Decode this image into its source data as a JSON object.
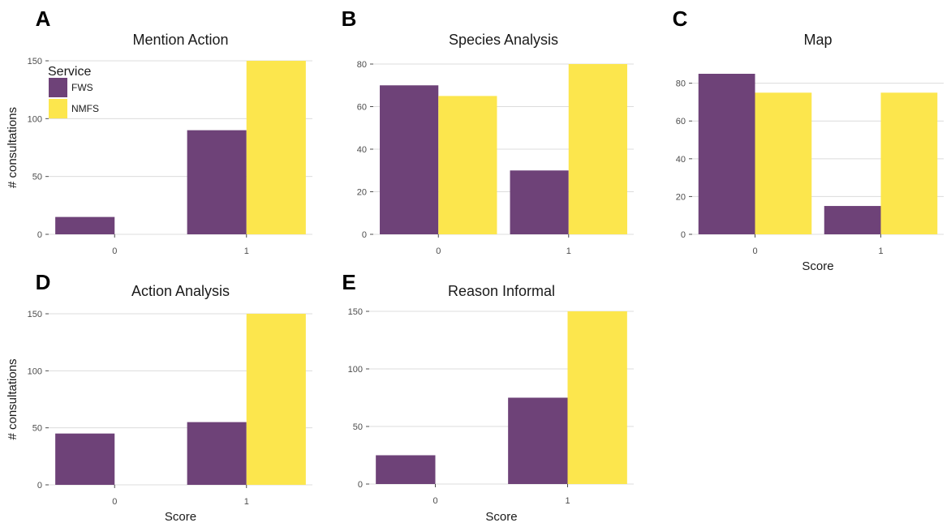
{
  "legend": {
    "title": "Service",
    "entries": [
      {
        "name": "FWS",
        "color": "#6E4278"
      },
      {
        "name": "NMFS",
        "color": "#FCE64D"
      }
    ]
  },
  "chart_data": [
    {
      "id": "A",
      "type": "bar",
      "title": "Mention Action",
      "categories": [
        "0",
        "1"
      ],
      "series": [
        {
          "name": "FWS",
          "values": [
            15,
            90
          ]
        },
        {
          "name": "NMFS",
          "values": [
            0,
            150
          ]
        }
      ],
      "ylabel": "# consultations",
      "xlabel": "",
      "ylim": [
        0,
        150
      ],
      "yticks": [
        0,
        50,
        100,
        150
      ],
      "grid": true
    },
    {
      "id": "B",
      "type": "bar",
      "title": "Species Analysis",
      "categories": [
        "0",
        "1"
      ],
      "series": [
        {
          "name": "FWS",
          "values": [
            70,
            30
          ]
        },
        {
          "name": "NMFS",
          "values": [
            65,
            80
          ]
        }
      ],
      "ylabel": "",
      "xlabel": "",
      "ylim": [
        0,
        80
      ],
      "yticks": [
        0,
        20,
        40,
        60,
        80
      ],
      "grid": true
    },
    {
      "id": "C",
      "type": "bar",
      "title": "Map",
      "categories": [
        "0",
        "1"
      ],
      "series": [
        {
          "name": "FWS",
          "values": [
            85,
            15
          ]
        },
        {
          "name": "NMFS",
          "values": [
            75,
            75
          ]
        }
      ],
      "ylabel": "",
      "xlabel": "Score",
      "ylim": [
        0,
        85
      ],
      "yticks": [
        0,
        20,
        40,
        60,
        80
      ],
      "grid": true
    },
    {
      "id": "D",
      "type": "bar",
      "title": "Action Analysis",
      "categories": [
        "0",
        "1"
      ],
      "series": [
        {
          "name": "FWS",
          "values": [
            45,
            55
          ]
        },
        {
          "name": "NMFS",
          "values": [
            0,
            150
          ]
        }
      ],
      "ylabel": "# consultations",
      "xlabel": "Score",
      "ylim": [
        0,
        150
      ],
      "yticks": [
        0,
        50,
        100,
        150
      ],
      "grid": true
    },
    {
      "id": "E",
      "type": "bar",
      "title": "Reason Informal",
      "categories": [
        "0",
        "1"
      ],
      "series": [
        {
          "name": "FWS",
          "values": [
            25,
            75
          ]
        },
        {
          "name": "NMFS",
          "values": [
            0,
            150
          ]
        }
      ],
      "ylabel": "",
      "xlabel": "Score",
      "ylim": [
        0,
        150
      ],
      "yticks": [
        0,
        50,
        100,
        150
      ],
      "grid": true
    }
  ]
}
